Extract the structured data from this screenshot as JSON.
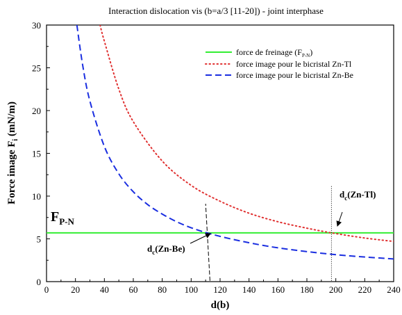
{
  "chart_data": {
    "type": "line",
    "title": "Interaction dislocation vis (b=a/3 [11-20]) - joint interphase",
    "xlabel": "d(b)",
    "ylabel_main": "Force image F",
    "ylabel_sub": "i",
    "ylabel_unit": " (mN/m)",
    "xlim": [
      0,
      240
    ],
    "ylim": [
      0,
      30
    ],
    "xticks": [
      0,
      20,
      40,
      60,
      80,
      100,
      120,
      140,
      160,
      180,
      200,
      220,
      240
    ],
    "yticks": [
      0,
      5,
      10,
      15,
      20,
      25,
      30
    ],
    "legend_position": "top-right",
    "series": [
      {
        "name": "force de freinage (F",
        "name_sub": "P-N",
        "name_end": ")",
        "style": "solid",
        "color": "#33ee33",
        "x": [
          0,
          240
        ],
        "y": [
          5.7,
          5.7
        ]
      },
      {
        "name": "force image pour le bicristal Zn-Tl",
        "style": "dotted",
        "color": "#e03030",
        "x": [
          37,
          40,
          50,
          60,
          80,
          100,
          120,
          140,
          160,
          180,
          197,
          220,
          240
        ],
        "y": [
          30,
          28.1,
          22.5,
          18.7,
          14.1,
          11.25,
          9.4,
          8.0,
          7.0,
          6.25,
          5.7,
          5.1,
          4.7
        ]
      },
      {
        "name": "force image pour le bicristal Zn-Be",
        "style": "dashed",
        "color": "#1a2ee0",
        "x": [
          21,
          25,
          30,
          40,
          50,
          60,
          70,
          80,
          90,
          100,
          111,
          130,
          160,
          200,
          240
        ],
        "y": [
          30,
          25.3,
          21.1,
          15.8,
          12.6,
          10.5,
          9.0,
          7.9,
          7.0,
          6.3,
          5.7,
          4.9,
          3.95,
          3.15,
          2.65
        ]
      }
    ],
    "critical_lines": [
      {
        "name": "Zn-Tl",
        "style": "dotted",
        "x": [
          197,
          197
        ],
        "y": [
          0.1,
          11.3
        ]
      },
      {
        "name": "Zn-Be",
        "style": "dashed",
        "x": [
          113,
          110
        ],
        "y": [
          0.1,
          9.1
        ]
      }
    ],
    "annotations": {
      "fpn": {
        "main": "F",
        "sub": "P-N"
      },
      "dc_tl": {
        "main": "d",
        "sub": "c",
        "rest": "(Zn-Tl)"
      },
      "dc_be": {
        "main": "d",
        "sub": "c",
        "rest": "(Zn-Be)"
      }
    }
  }
}
